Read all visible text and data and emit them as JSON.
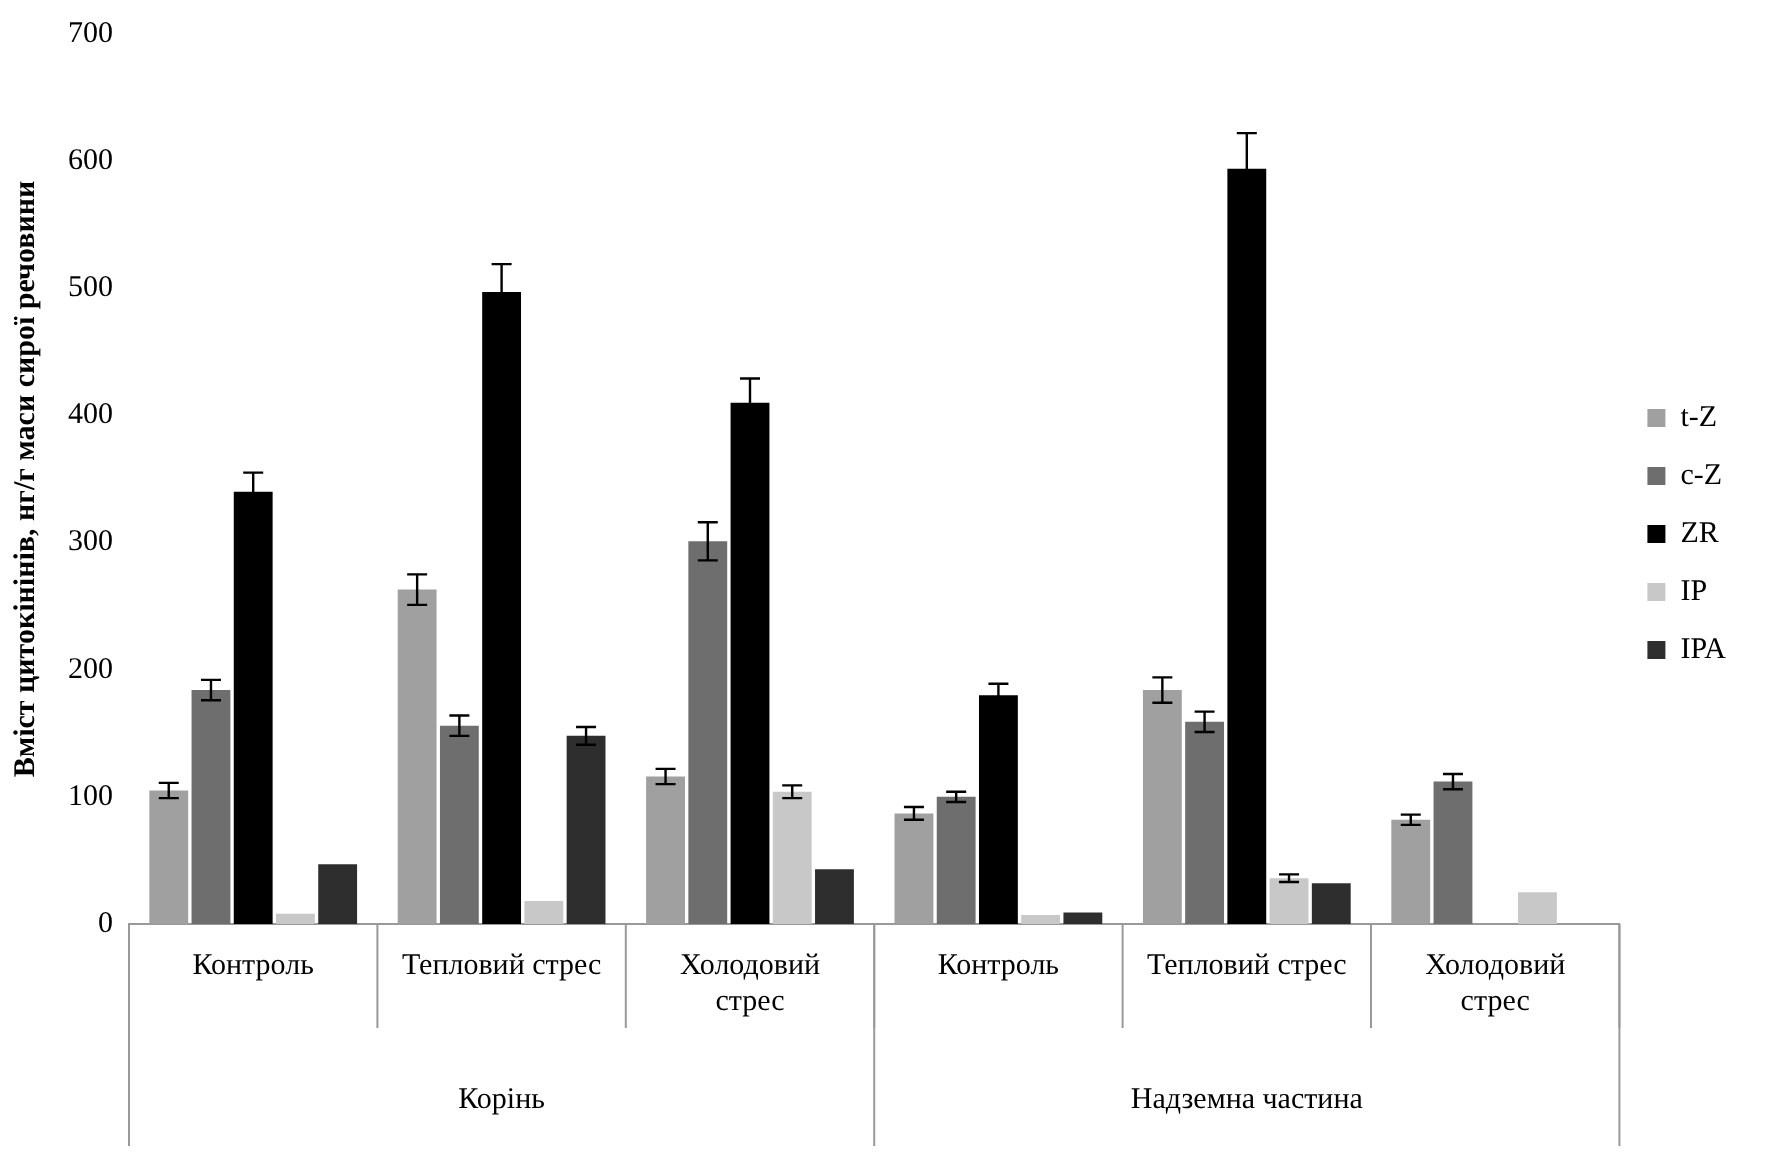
{
  "chart_data": {
    "type": "bar",
    "ylabel": "Вміст цитокінінів, нг/г маси сирої речовини",
    "categories": [
      "Контроль",
      "Тепловий стрес",
      "Холодовий стрес",
      "Контроль",
      "Тепловий стрес",
      "Холодовий стрес"
    ],
    "annotations": [
      "Корінь",
      "Надземна частина"
    ],
    "series": [
      {
        "name": "t-Z",
        "color": "#a0a0a0",
        "values": [
          105,
          263,
          116,
          87,
          184,
          82
        ],
        "errors": [
          6,
          12,
          6,
          5,
          10,
          4
        ]
      },
      {
        "name": "c-Z",
        "color": "#6e6e6e",
        "values": [
          184,
          156,
          301,
          100,
          159,
          112
        ],
        "errors": [
          8,
          8,
          15,
          4,
          8,
          6
        ]
      },
      {
        "name": "ZR",
        "color": "#000000",
        "values": [
          340,
          497,
          410,
          180,
          594,
          null
        ],
        "errors": [
          15,
          22,
          19,
          9,
          28,
          null
        ]
      },
      {
        "name": "IP",
        "color": "#c8c8c8",
        "values": [
          8,
          18,
          104,
          7,
          36,
          25
        ],
        "errors": [
          null,
          null,
          5,
          null,
          3,
          null
        ]
      },
      {
        "name": "IPA",
        "color": "#2e2e2e",
        "values": [
          47,
          148,
          43,
          9,
          32,
          null
        ],
        "errors": [
          null,
          7,
          null,
          null,
          null,
          null
        ]
      }
    ],
    "ylim": [
      0,
      700
    ],
    "yticks": [
      0,
      100,
      200,
      300,
      400,
      500,
      600,
      700
    ],
    "grid": false,
    "legend": "right"
  }
}
